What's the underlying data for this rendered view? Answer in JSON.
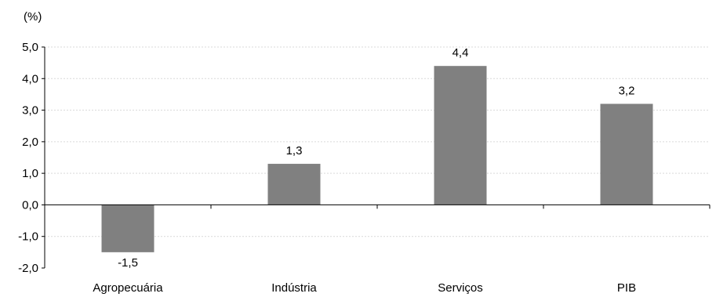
{
  "chart_data": {
    "type": "bar",
    "unit_label": "(%)",
    "categories": [
      "Agropecuária",
      "Indústria",
      "Serviços",
      "PIB"
    ],
    "values": [
      -1.5,
      1.3,
      4.4,
      3.2
    ],
    "data_labels": [
      "-1,5",
      "1,3",
      "4,4",
      "3,2"
    ],
    "yticks": [
      5,
      4,
      3,
      2,
      1,
      0,
      -1,
      -2
    ],
    "ytick_labels": [
      "5,0",
      "4,0",
      "3,0",
      "2,0",
      "1,0",
      "0,0",
      "-1,0",
      "-2,0"
    ],
    "ylim": [
      -2,
      5
    ],
    "bar_color": "#808080",
    "grid": true,
    "legend": "none"
  }
}
